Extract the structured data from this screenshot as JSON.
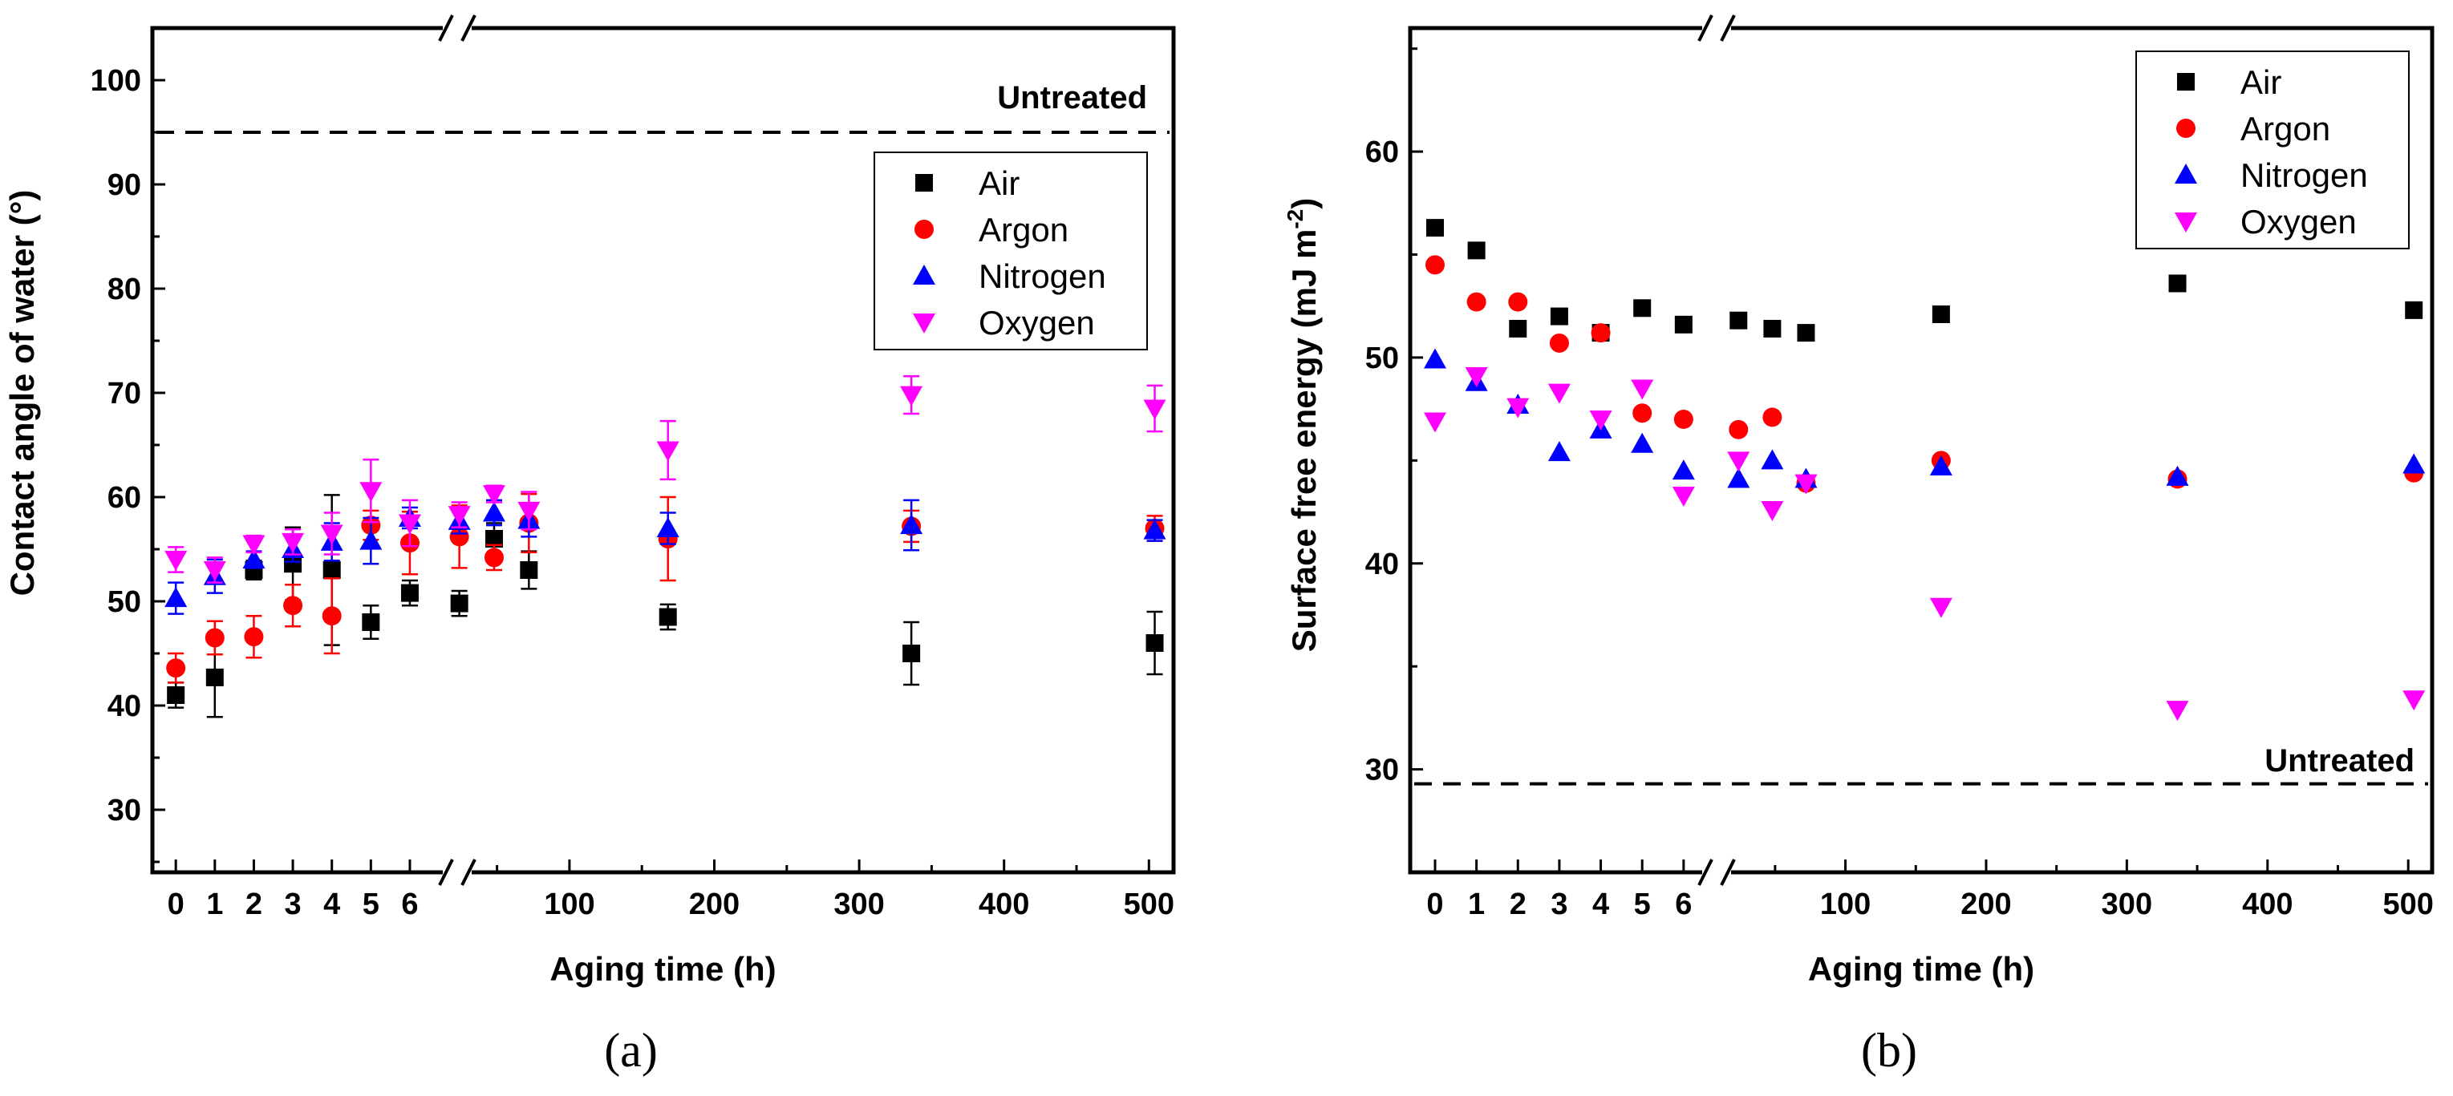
{
  "chart_data": [
    {
      "type": "scatter",
      "panel_label": "(a)",
      "xlabel": "Aging time (h)",
      "ylabel": "Contact angle of water (°)",
      "ylim": [
        24,
        105
      ],
      "yticks": [
        30,
        40,
        50,
        60,
        70,
        80,
        90,
        100
      ],
      "x_break_segments": [
        {
          "range": [
            -0.6,
            6.7
          ],
          "ticks": [
            0,
            1,
            2,
            3,
            4,
            5,
            6
          ]
        },
        {
          "range": [
            17,
            517
          ],
          "ticks": [
            100,
            200,
            300,
            400,
            500
          ]
        }
      ],
      "x_tick_labels": [
        "0",
        "1",
        "2",
        "3",
        "4",
        "5",
        "6",
        "100",
        "200",
        "300",
        "400",
        "500"
      ],
      "reference_line": {
        "label": "Untreated",
        "value": 95
      },
      "legend": [
        "Air",
        "Argon",
        "Nitrogen",
        "Oxygen"
      ],
      "series": [
        {
          "name": "Air",
          "marker": "square",
          "color": "#000000",
          "x": [
            0,
            1,
            2,
            3,
            4,
            5,
            6,
            24,
            48,
            72,
            168,
            336,
            504
          ],
          "y": [
            41,
            42.7,
            53,
            53.6,
            53,
            48,
            50.8,
            49.8,
            56,
            53,
            48.5,
            45,
            46
          ],
          "err": [
            1.2,
            3.8,
            0.9,
            3.5,
            7.2,
            1.6,
            1.2,
            1.2,
            1.5,
            1.8,
            1.2,
            3,
            3
          ]
        },
        {
          "name": "Argon",
          "marker": "circle",
          "color": "#ff0000",
          "x": [
            0,
            1,
            2,
            3,
            4,
            5,
            6,
            24,
            48,
            72,
            168,
            336,
            504
          ],
          "y": [
            43.6,
            46.5,
            46.6,
            49.6,
            48.6,
            57.3,
            55.6,
            56.2,
            54.2,
            57.5,
            56,
            57.2,
            57
          ],
          "err": [
            1.4,
            1.6,
            2,
            2,
            3.6,
            1.4,
            3,
            3,
            1.2,
            2.8,
            4,
            1.5,
            1.2
          ]
        },
        {
          "name": "Nitrogen",
          "marker": "triangle-up",
          "color": "#0000ff",
          "x": [
            0,
            1,
            2,
            3,
            4,
            5,
            6,
            24,
            48,
            72,
            168,
            336,
            504
          ],
          "y": [
            50.3,
            52.4,
            54,
            55,
            55.7,
            55.8,
            58,
            57.7,
            58.5,
            57.8,
            57,
            57.3,
            56.8
          ],
          "err": [
            1.5,
            1.6,
            0.8,
            1.2,
            1.8,
            2.2,
            1,
            1.2,
            1.2,
            1.6,
            1.5,
            2.4,
            1
          ]
        },
        {
          "name": "Oxygen",
          "marker": "triangle-down",
          "color": "#ff00ff",
          "x": [
            0,
            1,
            2,
            3,
            4,
            5,
            6,
            24,
            48,
            72,
            168,
            336,
            504
          ],
          "y": [
            54,
            53,
            55.5,
            55.7,
            56.5,
            60.6,
            57.5,
            58.3,
            60.3,
            58.7,
            64.5,
            69.8,
            68.5
          ],
          "err": [
            1.2,
            1.2,
            0.8,
            1.2,
            2,
            3,
            2.2,
            1.2,
            0.8,
            1.8,
            2.8,
            1.8,
            2.2
          ]
        }
      ]
    },
    {
      "type": "scatter",
      "panel_label": "(b)",
      "xlabel": "Aging time (h)",
      "ylabel_parts": [
        "Surface free energy (mJ m",
        "-2",
        ")"
      ],
      "ylim": [
        25,
        66
      ],
      "yticks": [
        30,
        40,
        50,
        60
      ],
      "x_break_segments": [
        {
          "range": [
            -0.6,
            6.7
          ],
          "ticks": [
            0,
            1,
            2,
            3,
            4,
            5,
            6
          ]
        },
        {
          "range": [
            17,
            517
          ],
          "ticks": [
            100,
            200,
            300,
            400,
            500
          ]
        }
      ],
      "x_tick_labels": [
        "0",
        "1",
        "2",
        "3",
        "4",
        "5",
        "6",
        "100",
        "200",
        "300",
        "400",
        "500"
      ],
      "reference_line": {
        "label": "Untreated",
        "value": 29.3
      },
      "legend": [
        "Air",
        "Argon",
        "Nitrogen",
        "Oxygen"
      ],
      "series": [
        {
          "name": "Air",
          "marker": "square",
          "color": "#000000",
          "x": [
            0,
            1,
            2,
            3,
            4,
            5,
            6,
            24,
            48,
            72,
            168,
            336,
            504
          ],
          "y": [
            56.3,
            55.2,
            51.4,
            52,
            51.2,
            52.4,
            51.6,
            51.8,
            51.4,
            51.2,
            52.1,
            53.6,
            52.3
          ]
        },
        {
          "name": "Argon",
          "marker": "circle",
          "color": "#ff0000",
          "x": [
            0,
            1,
            2,
            3,
            4,
            5,
            6,
            24,
            48,
            72,
            168,
            336,
            504
          ],
          "y": [
            54.5,
            52.7,
            52.7,
            50.7,
            51.2,
            47.3,
            47,
            46.5,
            47.1,
            43.9,
            45,
            44.1,
            44.4
          ]
        },
        {
          "name": "Nitrogen",
          "marker": "triangle-up",
          "color": "#0000ff",
          "x": [
            0,
            1,
            2,
            3,
            4,
            5,
            6,
            24,
            48,
            72,
            168,
            336,
            504
          ],
          "y": [
            49.9,
            48.8,
            47.7,
            45.4,
            46.5,
            45.8,
            44.5,
            44.1,
            45,
            44.1,
            44.7,
            44.2,
            44.8
          ]
        },
        {
          "name": "Oxygen",
          "marker": "triangle-down",
          "color": "#ff00ff",
          "x": [
            0,
            1,
            2,
            3,
            4,
            5,
            6,
            24,
            48,
            72,
            168,
            336,
            504
          ],
          "y": [
            46.9,
            49.1,
            47.6,
            48.3,
            47,
            48.5,
            43.3,
            45,
            42.6,
            43.9,
            37.9,
            32.9,
            33.4
          ]
        }
      ]
    }
  ]
}
